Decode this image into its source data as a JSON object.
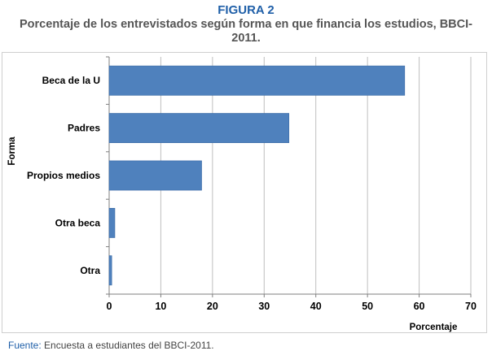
{
  "figure_label": "FIGURA 2",
  "title_line1": "Porcentaje de los entrevistados según forma en que financia los estudios, BBCI-",
  "title_line2": "2011.",
  "source_key": "Fuente:",
  "source_text": " Encuesta a estudiantes del BBCI-2011.",
  "colors": {
    "bar": "#4f81bd",
    "bar_border": "#3a6aa5",
    "grid": "#bfbfbf",
    "title_blue": "#1f5fa8"
  },
  "chart_data": {
    "type": "bar",
    "orientation": "horizontal",
    "categories": [
      "Beca de la U",
      "Padres",
      "Propios medios",
      "Otra beca",
      "Otra"
    ],
    "values": [
      57.2,
      34.8,
      17.9,
      1.1,
      0.5
    ],
    "xlabel": "Porcentaje",
    "ylabel": "Forma",
    "xlim": [
      0,
      70
    ],
    "xticks": [
      0,
      10,
      20,
      30,
      40,
      50,
      60,
      70
    ],
    "grid": true
  }
}
